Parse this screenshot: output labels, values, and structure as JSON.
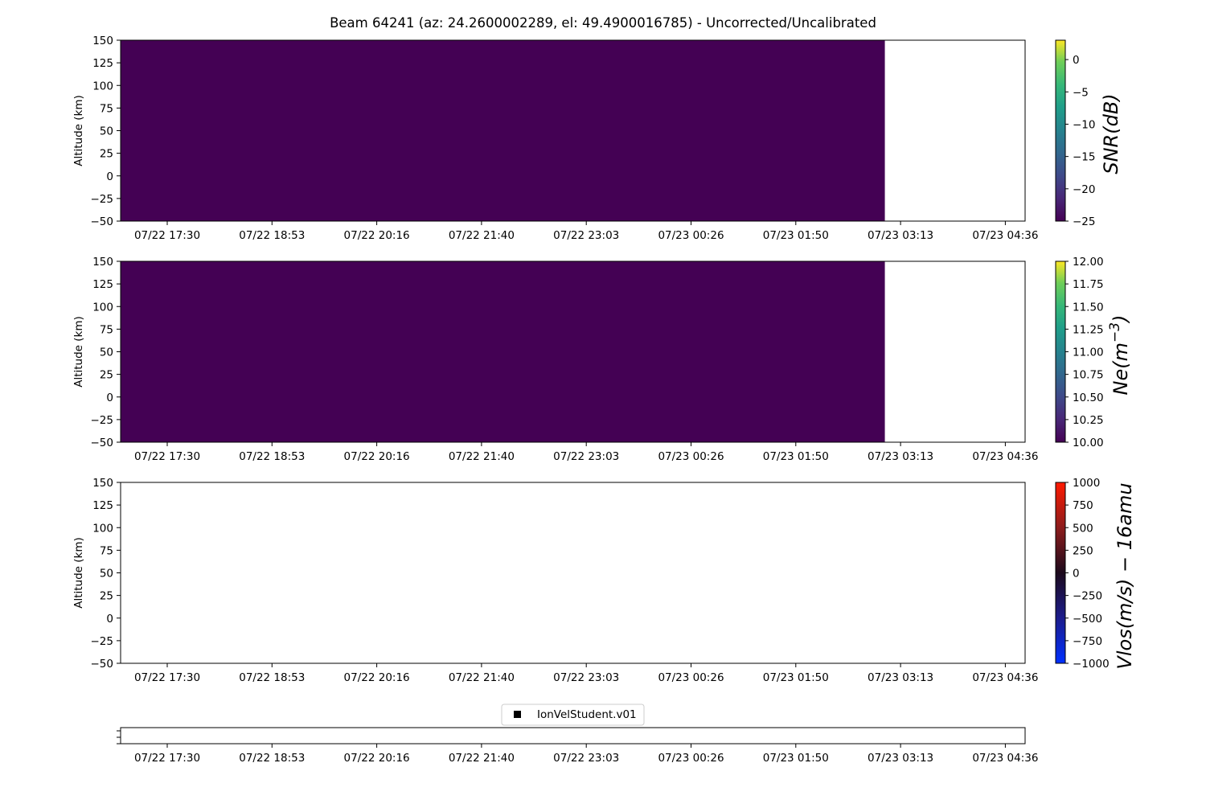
{
  "chart_data": {
    "title": "Beam 64241 (az: 24.2600002289, el: 49.4900016785) - Uncorrected/Uncalibrated",
    "x_ticks": [
      "07/22 17:30",
      "07/22 18:53",
      "07/22 20:16",
      "07/22 21:40",
      "07/22 23:03",
      "07/23 00:26",
      "07/23 01:50",
      "07/23 03:13",
      "07/23 04:36"
    ],
    "x_data_end_tick": 6.85,
    "panels": [
      {
        "type": "heatmap",
        "ylabel": "Altitude (km)",
        "ylim": [
          -50,
          150
        ],
        "yticks": [
          -50,
          -25,
          0,
          25,
          50,
          75,
          100,
          125,
          150
        ],
        "fill_color": "#440154",
        "colorbar": {
          "label": "SNR(dB)",
          "range": [
            -25,
            3
          ],
          "ticks": [
            "0",
            "−5",
            "−10",
            "−15",
            "−20",
            "−25"
          ],
          "tick_values": [
            0,
            -5,
            -10,
            -15,
            -20,
            -25
          ],
          "colormap": "viridis"
        }
      },
      {
        "type": "heatmap",
        "ylabel": "Altitude (km)",
        "ylim": [
          -50,
          150
        ],
        "yticks": [
          -50,
          -25,
          0,
          25,
          50,
          75,
          100,
          125,
          150
        ],
        "fill_color": "#440154",
        "colorbar": {
          "label": "Ne(m^-3)",
          "range": [
            10,
            12
          ],
          "ticks": [
            "12.00",
            "11.75",
            "11.50",
            "11.25",
            "11.00",
            "10.75",
            "10.50",
            "10.25",
            "10.00"
          ],
          "tick_values": [
            12,
            11.75,
            11.5,
            11.25,
            11,
            10.75,
            10.5,
            10.25,
            10
          ],
          "colormap": "viridis"
        }
      },
      {
        "type": "heatmap",
        "ylabel": "Altitude (km)",
        "ylim": [
          -50,
          150
        ],
        "yticks": [
          -50,
          -25,
          0,
          25,
          50,
          75,
          100,
          125,
          150
        ],
        "fill_color": null,
        "colorbar": {
          "label": "Vlos(m/s) − 16amu",
          "range": [
            -1000,
            1000
          ],
          "ticks": [
            "1000",
            "750",
            "500",
            "250",
            "0",
            "−250",
            "−500",
            "−750",
            "−1000"
          ],
          "tick_values": [
            1000,
            750,
            500,
            250,
            0,
            -250,
            -500,
            -750,
            -1000
          ],
          "colormap": "blue-black-red"
        }
      }
    ],
    "legend": {
      "entries": [
        "IonVelStudent.v01"
      ],
      "marker_color": "#000000"
    }
  }
}
